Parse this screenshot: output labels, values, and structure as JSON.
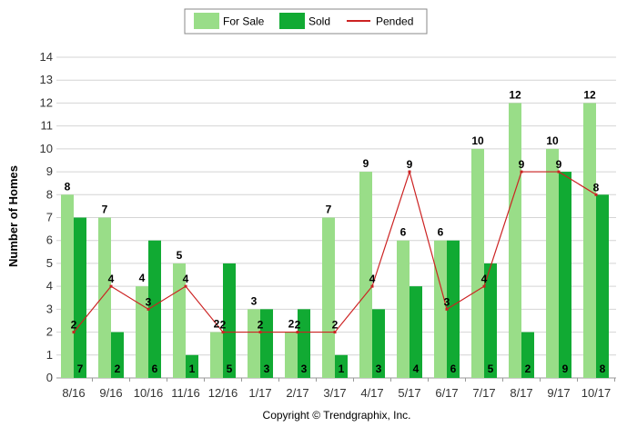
{
  "chart_data": {
    "type": "bar",
    "categories": [
      "8/16",
      "9/16",
      "10/16",
      "11/16",
      "12/16",
      "1/17",
      "2/17",
      "3/17",
      "4/17",
      "5/17",
      "6/17",
      "7/17",
      "8/17",
      "9/17",
      "10/17"
    ],
    "series": [
      {
        "name": "For Sale",
        "type": "bar",
        "color": "#99dd88",
        "values": [
          8,
          7,
          4,
          5,
          2,
          3,
          2,
          7,
          9,
          6,
          6,
          10,
          12,
          10,
          12
        ]
      },
      {
        "name": "Sold",
        "type": "bar",
        "color": "#11aa33",
        "values": [
          7,
          2,
          6,
          1,
          5,
          3,
          3,
          1,
          3,
          4,
          6,
          5,
          2,
          9,
          8
        ]
      },
      {
        "name": "Pended",
        "type": "line",
        "color": "#cc2222",
        "values": [
          2,
          4,
          3,
          4,
          2,
          2,
          2,
          2,
          4,
          9,
          3,
          4,
          9,
          9,
          8
        ]
      }
    ],
    "xlabel": "",
    "ylabel": "Number of Homes",
    "ylim": [
      0,
      14
    ],
    "yticks": [
      0,
      1,
      2,
      3,
      4,
      5,
      6,
      7,
      8,
      9,
      10,
      11,
      12,
      13,
      14
    ],
    "grid": true,
    "legend_position": "top-center"
  },
  "copyright": "Copyright © Trendgraphix, Inc."
}
